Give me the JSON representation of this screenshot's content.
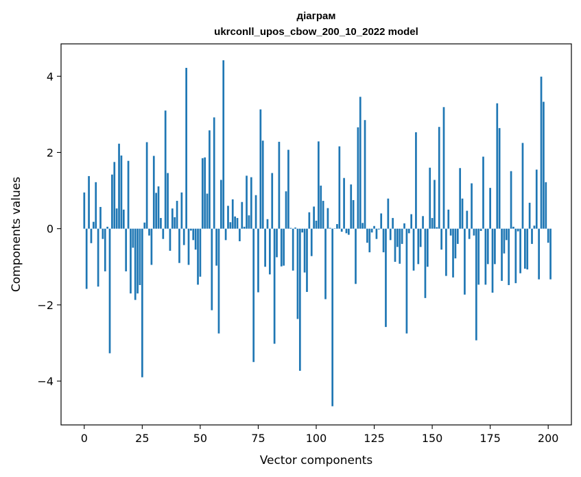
{
  "chart_data": {
    "type": "bar",
    "title_line1": "діаграм",
    "title_line2": "ukrconll_upos_cbow_200_10_2022 model",
    "xlabel": "Vector components",
    "ylabel": "Components values",
    "xlim": [
      -10,
      210
    ],
    "ylim": [
      -5.15,
      4.85
    ],
    "xticks": [
      0,
      25,
      50,
      75,
      100,
      125,
      150,
      175,
      200
    ],
    "xtick_labels": [
      "0",
      "25",
      "50",
      "75",
      "100",
      "125",
      "150",
      "175",
      "200"
    ],
    "yticks": [
      -4,
      -2,
      0,
      2,
      4
    ],
    "ytick_labels": [
      "−4",
      "−2",
      "0",
      "2",
      "4"
    ],
    "values": [
      0.95,
      -1.58,
      1.38,
      -0.38,
      0.18,
      1.22,
      -1.52,
      0.57,
      -0.27,
      -1.12,
      0.05,
      -3.27,
      1.42,
      1.75,
      0.53,
      2.23,
      1.92,
      0.5,
      -1.12,
      1.78,
      -1.7,
      -0.5,
      -1.87,
      -1.7,
      -1.48,
      -3.9,
      0.16,
      2.27,
      -0.18,
      -0.95,
      1.91,
      0.94,
      1.11,
      0.28,
      -0.27,
      3.1,
      1.46,
      -0.58,
      0.53,
      0.3,
      0.73,
      -0.9,
      0.95,
      -0.43,
      4.22,
      -0.95,
      -0.05,
      -0.3,
      -0.55,
      -1.47,
      -1.26,
      1.85,
      1.87,
      0.92,
      2.58,
      -2.14,
      2.92,
      -0.97,
      -2.75,
      1.28,
      4.42,
      -0.3,
      0.6,
      0.17,
      0.77,
      0.32,
      0.28,
      -0.33,
      0.7,
      0.05,
      1.39,
      0.35,
      1.35,
      -3.5,
      0.88,
      -1.67,
      3.13,
      2.31,
      -1.0,
      0.25,
      -1.2,
      1.46,
      -3.02,
      -0.75,
      2.28,
      -0.99,
      -0.97,
      0.98,
      2.07,
      0.02,
      -1.1,
      0.03,
      -2.37,
      -3.73,
      -0.1,
      -1.15,
      -1.66,
      0.43,
      -0.72,
      0.58,
      0.21,
      2.29,
      1.13,
      0.73,
      -1.85,
      0.54,
      0.02,
      -4.66,
      0.01,
      0.12,
      2.16,
      -0.08,
      1.33,
      -0.12,
      -0.16,
      1.16,
      0.75,
      -1.45,
      2.66,
      3.46,
      0.15,
      2.85,
      -0.37,
      -0.62,
      -0.1,
      0.07,
      -0.27,
      -0.02,
      0.4,
      -0.62,
      -2.58,
      0.79,
      -0.3,
      0.28,
      -0.87,
      -0.48,
      -0.92,
      -0.4,
      0.14,
      -2.75,
      -0.12,
      0.38,
      -1.1,
      2.53,
      -0.93,
      -0.48,
      0.33,
      -1.82,
      -1.0,
      1.6,
      0.28,
      1.28,
      0.04,
      2.67,
      -0.55,
      3.19,
      -1.24,
      0.5,
      -0.18,
      -1.28,
      -0.78,
      -0.4,
      1.59,
      0.79,
      -1.73,
      0.47,
      -0.27,
      1.19,
      -0.18,
      -2.93,
      -1.47,
      -0.06,
      1.89,
      -1.47,
      -0.93,
      1.07,
      -1.68,
      -0.93,
      3.29,
      2.64,
      -1.37,
      -0.65,
      -0.3,
      -1.48,
      1.51,
      0.05,
      -1.43,
      -0.07,
      -1.17,
      2.25,
      -1.05,
      -1.07,
      0.68,
      -0.4,
      0.08,
      1.55,
      -1.33,
      3.99,
      3.33,
      1.22,
      -0.37,
      -1.33
    ]
  }
}
